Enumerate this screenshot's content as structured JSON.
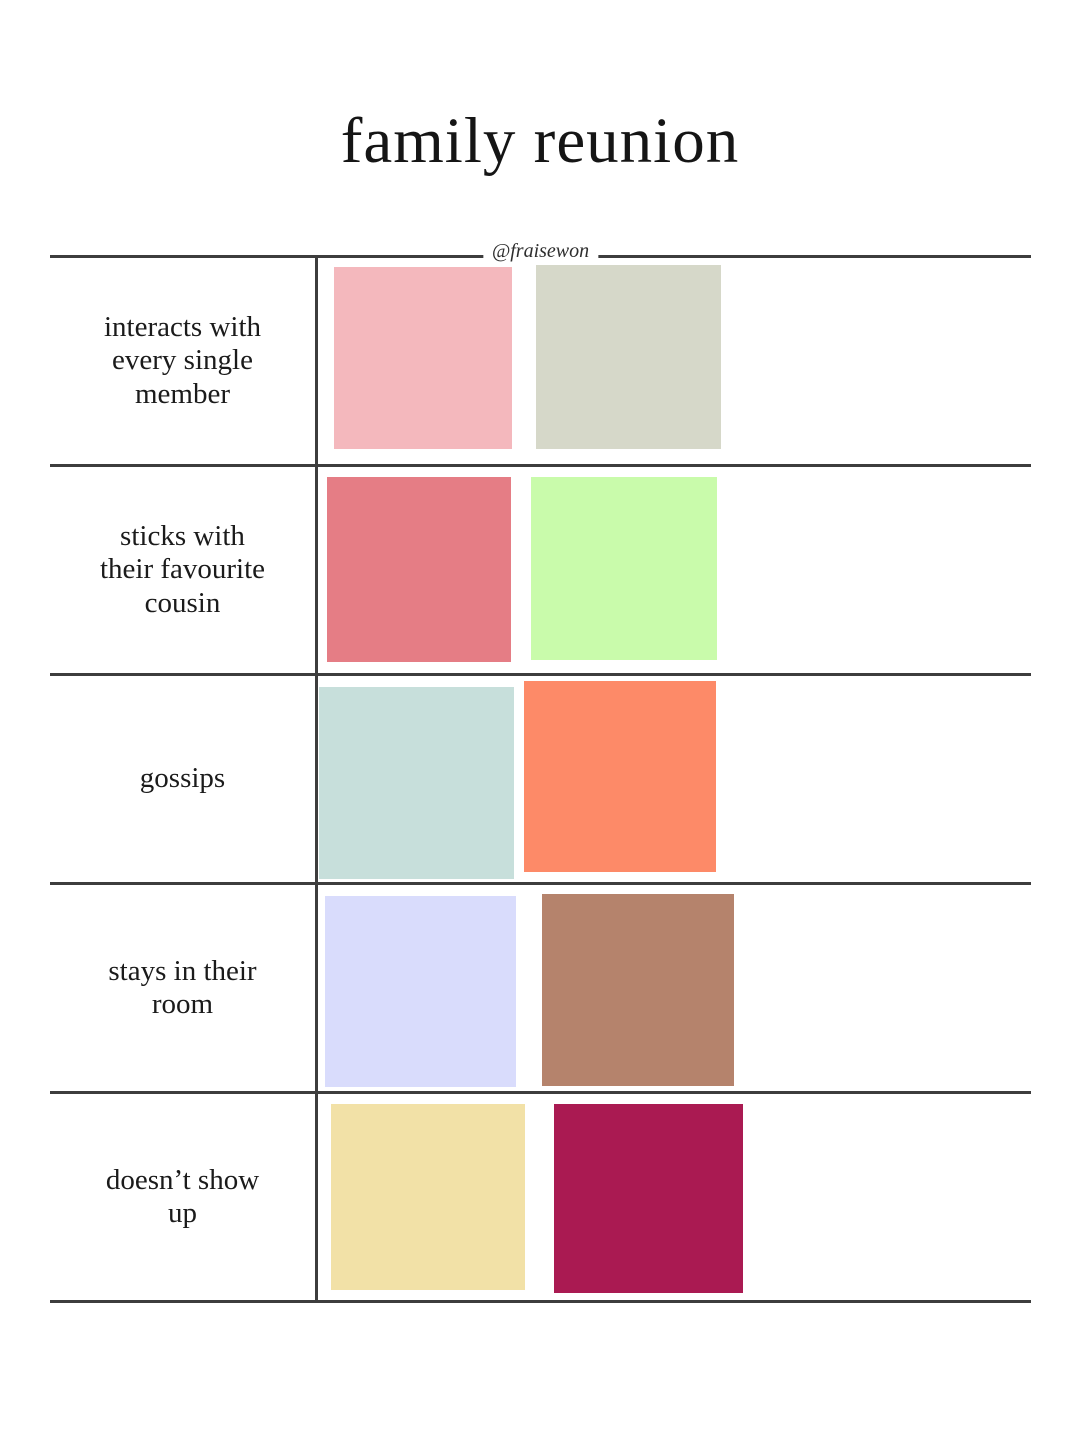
{
  "title": "family reunion",
  "watermark": "@fraisewon",
  "colors": {
    "background": "#ffffff",
    "line": "#3d3d3d",
    "text": "#1b1b1b"
  },
  "table": {
    "rows": [
      {
        "label": "interacts with every single member",
        "label_lines": [
          "interacts with",
          "every single",
          "member"
        ],
        "swatches": [
          {
            "name": "pale-pink",
            "color": "#f4b8bd"
          },
          {
            "name": "sage-grey",
            "color": "#d6d8c9"
          }
        ]
      },
      {
        "label": "sticks with their favourite cousin",
        "label_lines": [
          "sticks with",
          "their favourite",
          "cousin"
        ],
        "swatches": [
          {
            "name": "rose-red",
            "color": "#e57d85"
          },
          {
            "name": "light-green",
            "color": "#c9fbab"
          }
        ]
      },
      {
        "label": "gossips",
        "label_lines": [
          "gossips"
        ],
        "swatches": [
          {
            "name": "pale-teal",
            "color": "#c7dfdb"
          },
          {
            "name": "salmon-orange",
            "color": "#fd8a68"
          }
        ]
      },
      {
        "label": "stays in their room",
        "label_lines": [
          "stays in their",
          "room"
        ],
        "swatches": [
          {
            "name": "lavender",
            "color": "#d9dcfc"
          },
          {
            "name": "tan-brown",
            "color": "#b5836c"
          }
        ]
      },
      {
        "label": "doesn’t show up",
        "label_lines": [
          "doesn’t show",
          "up"
        ],
        "swatches": [
          {
            "name": "pale-yellow",
            "color": "#f2e1a7"
          },
          {
            "name": "raspberry",
            "color": "#aa1a52"
          }
        ]
      }
    ]
  }
}
